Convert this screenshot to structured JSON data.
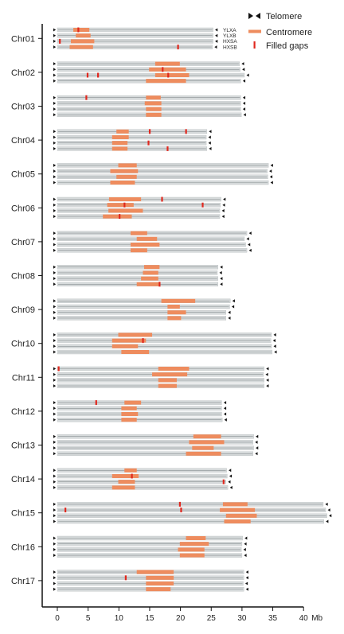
{
  "chart_data": {
    "type": "ideogram",
    "x_axis": {
      "ticks": [
        0,
        5,
        10,
        15,
        20,
        25,
        30,
        35,
        40
      ],
      "unit": "Mb",
      "range": [
        0,
        40
      ]
    },
    "haplotypes": [
      "YLXA",
      "YLXB",
      "HXSA",
      "HXSB"
    ],
    "legend": [
      {
        "label": "Telomere",
        "marker": "triangles"
      },
      {
        "label": "Centromere",
        "marker": "orange-bar"
      },
      {
        "label": "Filled gaps",
        "marker": "red-tick"
      }
    ],
    "colors": {
      "chromosome": "#d6dadb",
      "centromere": "#ee8c5e",
      "gap": "#e0281e",
      "telomere": "#111111",
      "axis": "#111111"
    },
    "chromosomes": [
      {
        "name": "Chr01",
        "haps": [
          {
            "length": 25.3,
            "cen": [
              2.6,
              5.2
            ],
            "gaps": [
              3.4
            ]
          },
          {
            "length": 25.3,
            "cen": [
              3.0,
              5.4
            ],
            "gaps": []
          },
          {
            "length": 25.3,
            "cen": [
              2.2,
              6.0
            ],
            "gaps": [
              0.4
            ]
          },
          {
            "length": 25.2,
            "cen": [
              2.0,
              5.8
            ],
            "gaps": [
              19.6
            ]
          }
        ]
      },
      {
        "name": "Chr02",
        "haps": [
          {
            "length": 29.6,
            "cen": [
              15.9,
              19.9
            ],
            "gaps": []
          },
          {
            "length": 29.7,
            "cen": [
              14.9,
              20.9
            ],
            "gaps": [
              17.1
            ]
          },
          {
            "length": 30.4,
            "cen": [
              15.9,
              21.4
            ],
            "gaps": [
              4.9,
              6.6,
              18.0
            ]
          },
          {
            "length": 29.8,
            "cen": [
              14.4,
              20.9
            ],
            "gaps": []
          }
        ]
      },
      {
        "name": "Chr03",
        "haps": [
          {
            "length": 29.8,
            "cen": [
              14.4,
              16.8
            ],
            "gaps": [
              4.7
            ]
          },
          {
            "length": 29.8,
            "cen": [
              14.2,
              16.9
            ],
            "gaps": []
          },
          {
            "length": 29.8,
            "cen": [
              14.4,
              16.9
            ],
            "gaps": []
          },
          {
            "length": 29.9,
            "cen": [
              14.4,
              16.9
            ],
            "gaps": []
          }
        ]
      },
      {
        "name": "Chr04",
        "haps": [
          {
            "length": 24.3,
            "cen": [
              9.6,
              11.6
            ],
            "gaps": [
              15.0,
              20.9
            ]
          },
          {
            "length": 24.2,
            "cen": [
              8.9,
              11.6
            ],
            "gaps": []
          },
          {
            "length": 24.2,
            "cen": [
              8.9,
              11.4
            ],
            "gaps": [
              14.8
            ]
          },
          {
            "length": 24.3,
            "cen": [
              8.9,
              11.4
            ],
            "gaps": [
              17.9
            ]
          }
        ]
      },
      {
        "name": "Chr05",
        "haps": [
          {
            "length": 34.3,
            "cen": [
              9.9,
              12.9
            ],
            "gaps": []
          },
          {
            "length": 34.1,
            "cen": [
              8.6,
              13.1
            ],
            "gaps": []
          },
          {
            "length": 34.2,
            "cen": [
              9.6,
              12.9
            ],
            "gaps": []
          },
          {
            "length": 34.3,
            "cen": [
              8.6,
              12.6
            ],
            "gaps": []
          }
        ]
      },
      {
        "name": "Chr06",
        "haps": [
          {
            "length": 26.6,
            "cen": [
              8.4,
              13.6
            ],
            "gaps": [
              17.0
            ]
          },
          {
            "length": 26.5,
            "cen": [
              8.1,
              12.4
            ],
            "gaps": [
              10.9,
              23.6
            ]
          },
          {
            "length": 26.4,
            "cen": [
              8.3,
              13.9
            ],
            "gaps": []
          },
          {
            "length": 26.4,
            "cen": [
              7.4,
              12.1
            ],
            "gaps": [
              10.1
            ]
          }
        ]
      },
      {
        "name": "Chr07",
        "haps": [
          {
            "length": 30.8,
            "cen": [
              11.9,
              14.6
            ],
            "gaps": []
          },
          {
            "length": 30.4,
            "cen": [
              12.9,
              16.2
            ],
            "gaps": []
          },
          {
            "length": 30.6,
            "cen": [
              11.9,
              16.6
            ],
            "gaps": []
          },
          {
            "length": 30.8,
            "cen": [
              11.9,
              14.6
            ],
            "gaps": []
          }
        ]
      },
      {
        "name": "Chr08",
        "haps": [
          {
            "length": 26.1,
            "cen": [
              14.1,
              16.6
            ],
            "gaps": []
          },
          {
            "length": 26.0,
            "cen": [
              13.9,
              16.4
            ],
            "gaps": []
          },
          {
            "length": 26.1,
            "cen": [
              13.6,
              16.4
            ],
            "gaps": []
          },
          {
            "length": 26.1,
            "cen": [
              12.9,
              16.6
            ],
            "gaps": [
              16.6
            ]
          }
        ]
      },
      {
        "name": "Chr09",
        "haps": [
          {
            "length": 28.1,
            "cen": [
              16.9,
              22.4
            ],
            "gaps": []
          },
          {
            "length": 28.0,
            "cen": [
              17.9,
              19.9
            ],
            "gaps": []
          },
          {
            "length": 27.4,
            "cen": [
              17.9,
              20.9
            ],
            "gaps": []
          },
          {
            "length": 27.4,
            "cen": [
              17.9,
              20.1
            ],
            "gaps": []
          }
        ]
      },
      {
        "name": "Chr10",
        "haps": [
          {
            "length": 34.8,
            "cen": [
              9.9,
              15.4
            ],
            "gaps": []
          },
          {
            "length": 34.7,
            "cen": [
              8.9,
              14.4
            ],
            "gaps": [
              13.9
            ]
          },
          {
            "length": 34.8,
            "cen": [
              8.9,
              13.1
            ],
            "gaps": []
          },
          {
            "length": 34.9,
            "cen": [
              10.4,
              14.9
            ],
            "gaps": []
          }
        ]
      },
      {
        "name": "Chr11",
        "haps": [
          {
            "length": 33.6,
            "cen": [
              16.4,
              21.4
            ],
            "gaps": [
              0.2
            ]
          },
          {
            "length": 33.5,
            "cen": [
              15.4,
              21.1
            ],
            "gaps": []
          },
          {
            "length": 33.6,
            "cen": [
              16.4,
              19.4
            ],
            "gaps": []
          },
          {
            "length": 33.6,
            "cen": [
              16.4,
              19.4
            ],
            "gaps": []
          }
        ]
      },
      {
        "name": "Chr12",
        "haps": [
          {
            "length": 26.7,
            "cen": [
              10.9,
              13.6
            ],
            "gaps": [
              6.3
            ]
          },
          {
            "length": 26.7,
            "cen": [
              10.4,
              12.9
            ],
            "gaps": []
          },
          {
            "length": 26.7,
            "cen": [
              10.4,
              13.1
            ],
            "gaps": []
          },
          {
            "length": 26.8,
            "cen": [
              10.4,
              12.9
            ],
            "gaps": []
          }
        ]
      },
      {
        "name": "Chr13",
        "haps": [
          {
            "length": 31.9,
            "cen": [
              22.1,
              26.6
            ],
            "gaps": []
          },
          {
            "length": 31.8,
            "cen": [
              21.4,
              27.1
            ],
            "gaps": []
          },
          {
            "length": 31.9,
            "cen": [
              21.9,
              25.4
            ],
            "gaps": []
          },
          {
            "length": 31.8,
            "cen": [
              20.9,
              26.6
            ],
            "gaps": []
          }
        ]
      },
      {
        "name": "Chr14",
        "haps": [
          {
            "length": 27.5,
            "cen": [
              10.9,
              12.9
            ],
            "gaps": []
          },
          {
            "length": 27.6,
            "cen": [
              8.9,
              13.2
            ],
            "gaps": [
              12.1
            ]
          },
          {
            "length": 27.4,
            "cen": [
              9.9,
              12.6
            ],
            "gaps": [
              27.0
            ]
          },
          {
            "length": 27.7,
            "cen": [
              8.9,
              12.6
            ],
            "gaps": []
          }
        ]
      },
      {
        "name": "Chr15",
        "haps": [
          {
            "length": 43.2,
            "cen": [
              26.9,
              30.9
            ],
            "gaps": [
              19.9
            ]
          },
          {
            "length": 43.6,
            "cen": [
              26.4,
              32.1
            ],
            "gaps": [
              1.3,
              20.1
            ]
          },
          {
            "length": 43.8,
            "cen": [
              27.4,
              32.4
            ],
            "gaps": []
          },
          {
            "length": 43.3,
            "cen": [
              27.1,
              31.4
            ],
            "gaps": []
          }
        ]
      },
      {
        "name": "Chr16",
        "haps": [
          {
            "length": 30.1,
            "cen": [
              20.9,
              24.1
            ],
            "gaps": []
          },
          {
            "length": 30.0,
            "cen": [
              19.9,
              24.6
            ],
            "gaps": []
          },
          {
            "length": 29.9,
            "cen": [
              19.6,
              23.9
            ],
            "gaps": []
          },
          {
            "length": 30.0,
            "cen": [
              19.9,
              23.9
            ],
            "gaps": []
          }
        ]
      },
      {
        "name": "Chr17",
        "haps": [
          {
            "length": 30.3,
            "cen": [
              12.9,
              18.9
            ],
            "gaps": []
          },
          {
            "length": 30.3,
            "cen": [
              14.4,
              18.9
            ],
            "gaps": [
              11.1
            ]
          },
          {
            "length": 30.2,
            "cen": [
              14.4,
              18.9
            ],
            "gaps": []
          },
          {
            "length": 30.3,
            "cen": [
              14.4,
              18.4
            ],
            "gaps": []
          }
        ]
      }
    ]
  }
}
